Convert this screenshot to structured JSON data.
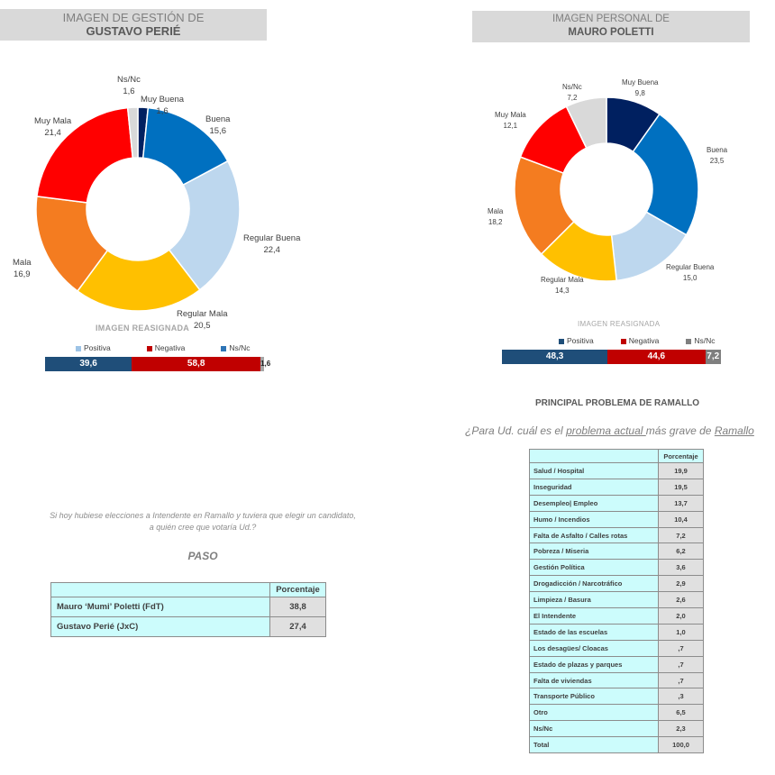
{
  "chart_data": [
    {
      "type": "pie",
      "title": "IMAGEN DE GESTIÓN DE",
      "subtitle": "GUSTAVO PERIÉ",
      "categories": [
        "Muy Buena",
        "Buena",
        "Regular Buena",
        "Regular Mala",
        "Mala",
        "Muy Mala",
        "Ns/Nc"
      ],
      "values": [
        1.6,
        15.6,
        22.4,
        20.5,
        16.9,
        21.4,
        1.6
      ],
      "value_labels": [
        "1,6",
        "15,6",
        "22,4",
        "20,5",
        "16,9",
        "21,4",
        "1,6"
      ],
      "colors": [
        "#002060",
        "#0070c0",
        "#bdd7ee",
        "#ffc000",
        "#f47c20",
        "#ff0000",
        "#d9d9d9"
      ],
      "donut": true
    },
    {
      "type": "pie",
      "title": "IMAGEN PERSONAL  DE",
      "subtitle": "MAURO POLETTI",
      "categories": [
        "Muy Buena",
        "Buena",
        "Regular Buena",
        "Regular Mala",
        "Mala",
        "Muy Mala",
        "Ns/Nc"
      ],
      "values": [
        9.8,
        23.5,
        15.0,
        14.3,
        18.2,
        12.1,
        7.2
      ],
      "value_labels": [
        "9,8",
        "23,5",
        "15,0",
        "14,3",
        "18,2",
        "12,1",
        "7,2"
      ],
      "colors": [
        "#002060",
        "#0070c0",
        "#bdd7ee",
        "#ffc000",
        "#f47c20",
        "#ff0000",
        "#d9d9d9"
      ],
      "donut": true
    },
    {
      "type": "bar",
      "orientation": "horizontal-stacked",
      "title": "IMAGEN REASIGNADA",
      "legend": [
        "Positiva",
        "Negativa",
        "Ns/Nc"
      ],
      "legend_colors": [
        "#9dc3e6",
        "#c00000",
        "#2e75b6"
      ],
      "values": [
        39.6,
        58.8,
        1.6
      ],
      "value_labels": [
        "39,6",
        "58,8",
        "1,6"
      ],
      "colors": [
        "#1f4e79",
        "#c00000",
        "#a6a6a6"
      ]
    },
    {
      "type": "bar",
      "orientation": "horizontal-stacked",
      "title": "IMAGEN REASIGNADA",
      "legend": [
        "Positiva",
        "Negativa",
        "Ns/Nc"
      ],
      "legend_colors": [
        "#1f4e79",
        "#c00000",
        "#7f7f7f"
      ],
      "values": [
        48.3,
        44.6,
        7.2
      ],
      "value_labels": [
        "48,3",
        "44,6",
        "7,2"
      ],
      "colors": [
        "#1f4e79",
        "#c00000",
        "#7f7f7f"
      ]
    }
  ],
  "vote": {
    "question_line1": "Si hoy hubiese elecciones a Intendente en Ramallo y tuviera que elegir un candidato,",
    "question_line2": "a quién cree que votaría Ud.?",
    "heading": "PASO",
    "col_header": "Porcentaje",
    "rows": [
      {
        "label": "Mauro ‘Mumi’ Poletti  (FdT)",
        "value": "38,8"
      },
      {
        "label": "Gustavo Perié (JxC)",
        "value": "27,4"
      }
    ]
  },
  "problems": {
    "heading": "PRINCIPAL PROBLEMA DE RAMALLO",
    "q_pre": "¿Para Ud. cuál es el ",
    "q_u1": "problema actual ",
    "q_mid": "más grave de ",
    "q_u2": "Ramallo",
    "col_header": "Porcentaje",
    "rows": [
      {
        "label": "Salud / Hospital",
        "value": "19,9"
      },
      {
        "label": "Inseguridad",
        "value": "19,5"
      },
      {
        "label": "Desempleo| Empleo",
        "value": "13,7"
      },
      {
        "label": "Humo / Incendios",
        "value": "10,4"
      },
      {
        "label": "Falta de Asfalto / Calles rotas",
        "value": "7,2"
      },
      {
        "label": "Pobreza / Miseria",
        "value": "6,2"
      },
      {
        "label": "Gestión Política",
        "value": "3,6"
      },
      {
        "label": "Drogadicción / Narcotráfico",
        "value": "2,9"
      },
      {
        "label": "Limpieza / Basura",
        "value": "2,6"
      },
      {
        "label": "El Intendente",
        "value": "2,0"
      },
      {
        "label": "Estado de las escuelas",
        "value": "1,0"
      },
      {
        "label": "Los desagües/ Cloacas",
        "value": ",7"
      },
      {
        "label": "Estado de plazas y parques",
        "value": ",7"
      },
      {
        "label": "Falta de viviendas",
        "value": ",7"
      },
      {
        "label": "Transporte Público",
        "value": ",3"
      },
      {
        "label": "Otro",
        "value": "6,5"
      },
      {
        "label": "Ns/Nc",
        "value": "2,3"
      },
      {
        "label": "Total",
        "value": "100,0"
      }
    ]
  }
}
